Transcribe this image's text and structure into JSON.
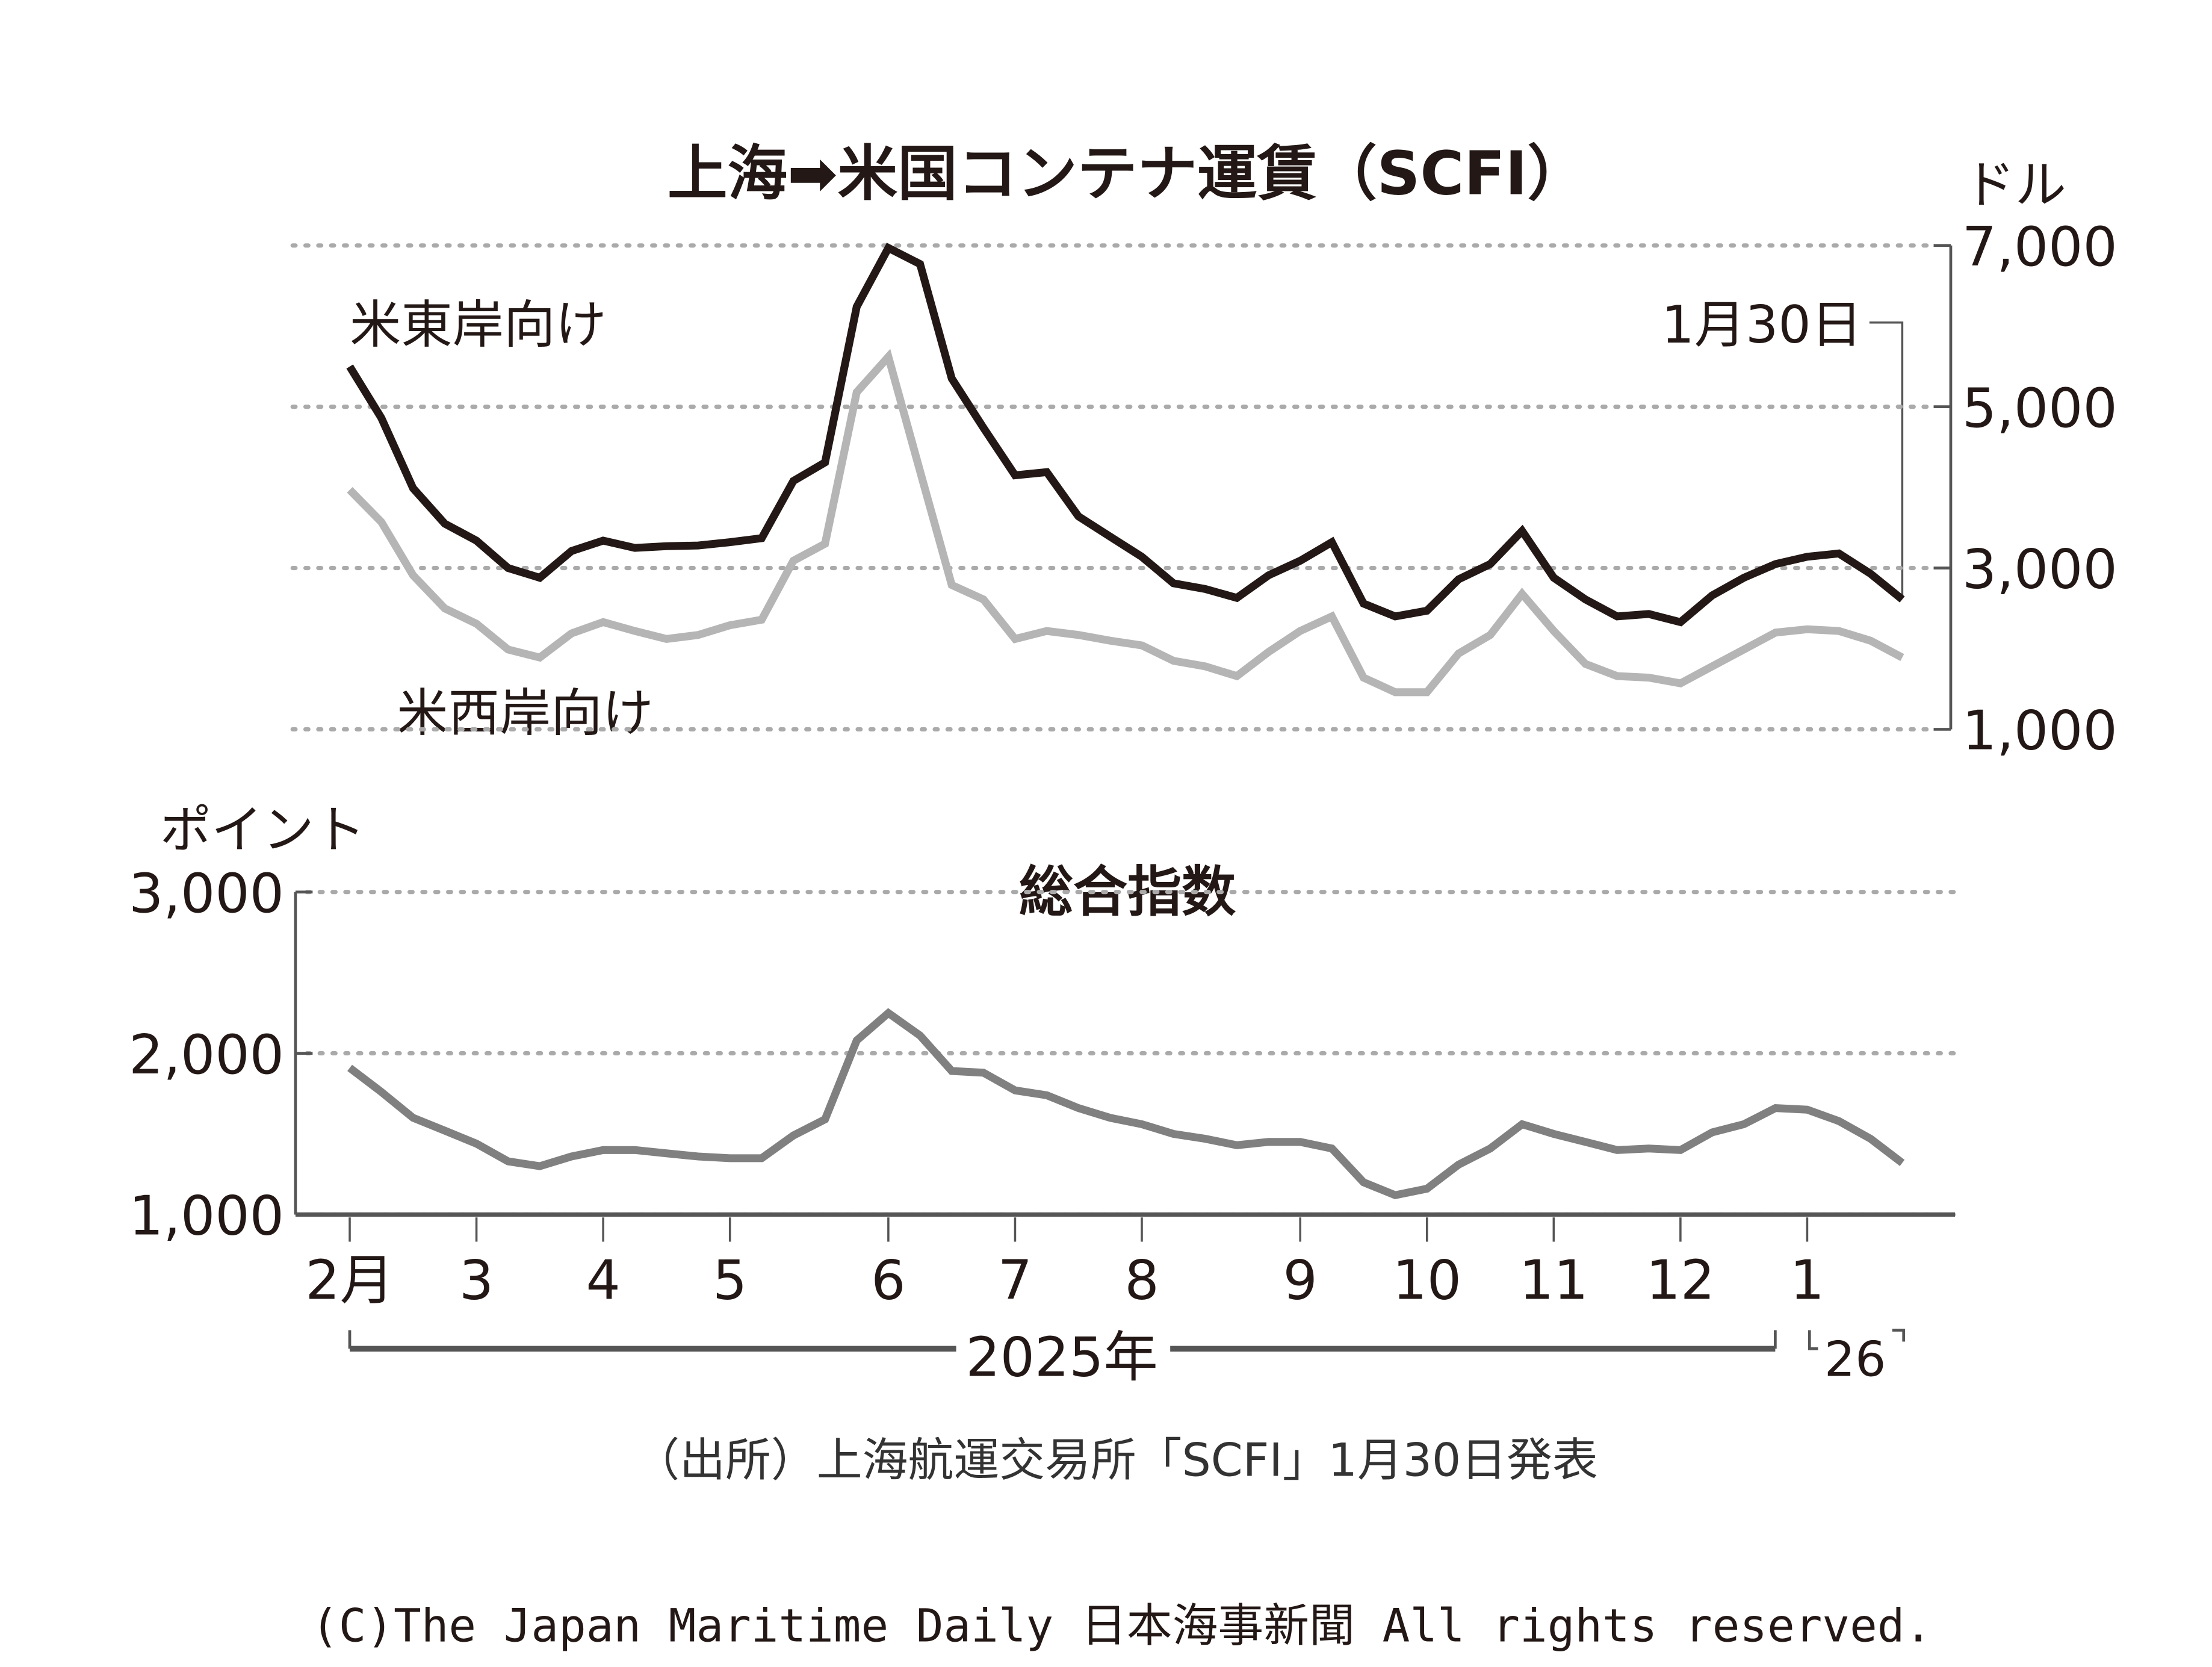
{
  "chart_data": [
    {
      "type": "line",
      "title": "上海➡米国コンテナ運賃（SCFI）",
      "ylabel": "ドル",
      "ylim": [
        1000,
        7000
      ],
      "yticks": [
        "7,000",
        "5,000",
        "3,000",
        "1,000"
      ],
      "ytick_values": [
        7000,
        5000,
        3000,
        1000
      ],
      "grid": true,
      "annotation": "1月30日",
      "x_weeks": 50,
      "series": [
        {
          "name": "米東岸向け",
          "color": "#231815",
          "values": [
            5500,
            4860,
            3990,
            3550,
            3340,
            3000,
            2880,
            3210,
            3340,
            3250,
            3270,
            3280,
            3320,
            3370,
            4080,
            4310,
            6240,
            6970,
            6770,
            5350,
            4740,
            4150,
            4190,
            3640,
            3390,
            3140,
            2810,
            2740,
            2630,
            2910,
            3090,
            3320,
            2560,
            2400,
            2470,
            2860,
            3050,
            3460,
            2880,
            2610,
            2400,
            2430,
            2330,
            2660,
            2880,
            3050,
            3140,
            3180,
            2930,
            2610
          ]
        },
        {
          "name": "米西岸向け",
          "color": "#b5b5b5",
          "values": [
            3970,
            3570,
            2910,
            2500,
            2310,
            1990,
            1890,
            2190,
            2330,
            2220,
            2120,
            2170,
            2290,
            2360,
            3090,
            3300,
            5180,
            5620,
            4200,
            2790,
            2610,
            2120,
            2220,
            2170,
            2100,
            2040,
            1850,
            1780,
            1660,
            1960,
            2220,
            2400,
            1640,
            1460,
            1460,
            1940,
            2170,
            2680,
            2220,
            1810,
            1660,
            1640,
            1570,
            1780,
            1990,
            2200,
            2240,
            2220,
            2100,
            1890
          ]
        }
      ]
    },
    {
      "type": "line",
      "title": "総合指数",
      "ylabel": "ポイント",
      "ylim": [
        1000,
        3000
      ],
      "yticks": [
        "3,000",
        "2,000",
        "1,000"
      ],
      "ytick_values": [
        3000,
        2000,
        1000
      ],
      "grid": true,
      "series": [
        {
          "name": "総合指数",
          "color": "#808080",
          "values": [
            1910,
            1760,
            1600,
            1520,
            1440,
            1330,
            1300,
            1360,
            1400,
            1400,
            1380,
            1360,
            1350,
            1350,
            1490,
            1590,
            2080,
            2250,
            2110,
            1890,
            1880,
            1770,
            1740,
            1660,
            1600,
            1560,
            1500,
            1470,
            1430,
            1450,
            1450,
            1410,
            1200,
            1120,
            1160,
            1310,
            1410,
            1560,
            1500,
            1450,
            1400,
            1410,
            1400,
            1510,
            1560,
            1660,
            1650,
            1580,
            1470,
            1320
          ]
        }
      ]
    }
  ],
  "x_axis": {
    "ticks": [
      {
        "label": "2月",
        "week": 0
      },
      {
        "label": "3",
        "week": 4
      },
      {
        "label": "4",
        "week": 8
      },
      {
        "label": "5",
        "week": 12
      },
      {
        "label": "6",
        "week": 17
      },
      {
        "label": "7",
        "week": 21
      },
      {
        "label": "8",
        "week": 25
      },
      {
        "label": "9",
        "week": 30
      },
      {
        "label": "10",
        "week": 34
      },
      {
        "label": "11",
        "week": 38
      },
      {
        "label": "12",
        "week": 42
      },
      {
        "label": "1",
        "week": 46
      }
    ],
    "year_2025": "2025年",
    "year_26": "26"
  },
  "source": "（出所）上海航運交易所「SCFI」1月30日発表",
  "copyright": "(C)The Japan Maritime Daily 日本海事新聞 All rights reserved."
}
